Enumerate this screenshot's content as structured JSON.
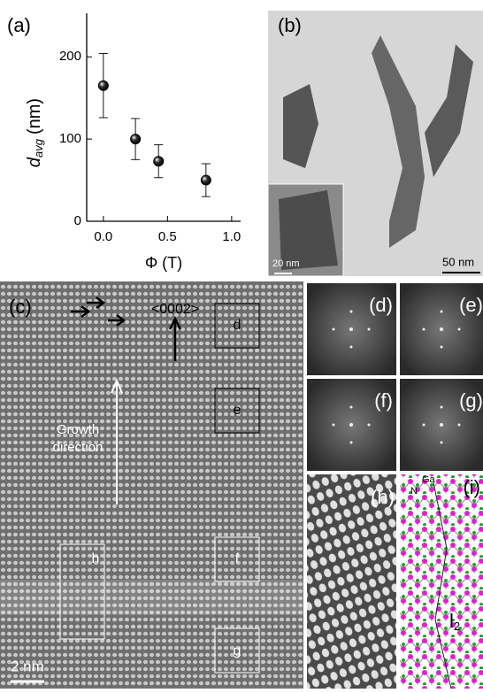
{
  "chart_data": {
    "type": "scatter",
    "panel_label": "(a)",
    "x_label": "Φ (T)",
    "y_label": {
      "main": "d",
      "sub": "avg",
      "unit": "(nm)"
    },
    "x": [
      0,
      0.25,
      0.43,
      0.8
    ],
    "values": [
      165,
      100,
      73,
      50
    ],
    "errors": [
      39,
      25,
      20,
      20
    ],
    "color": "#000000",
    "xlim": [
      -0.13,
      1.07
    ],
    "ylim": [
      0,
      253
    ],
    "xticks": [
      {
        "value": 0,
        "label": "0.0"
      },
      {
        "value": 0.5,
        "label": "0.5"
      },
      {
        "value": 1,
        "label": "1.0"
      }
    ],
    "yticks": [
      0,
      100,
      200
    ]
  },
  "panels": {
    "b": {
      "label": "(b)",
      "inset_scale": "20 nm",
      "scale": "50 nm"
    },
    "c": {
      "label": "(c)",
      "direction": "<0002>",
      "growth": [
        "Growth",
        "direction"
      ],
      "boxes": [
        "d",
        "e",
        "f",
        "g",
        "h"
      ],
      "scale": "2 nm"
    },
    "d": {
      "label": "(d)"
    },
    "e": {
      "label": "(e)"
    },
    "f": {
      "label": "(f)"
    },
    "g": {
      "label": "(g)"
    },
    "h": {
      "label": "(h)"
    },
    "i": {
      "label": "(i)",
      "atoms": [
        "Ga",
        "N"
      ],
      "spacing": "l",
      "spacing_sub": "2"
    }
  }
}
